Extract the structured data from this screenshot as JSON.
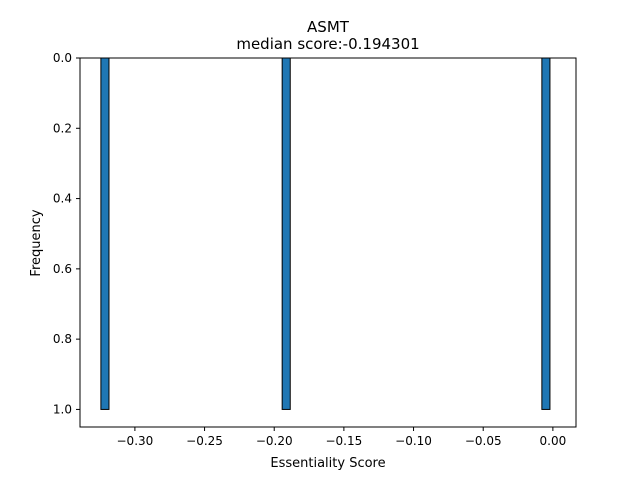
{
  "chart_data": {
    "type": "bar",
    "title": "ASMT",
    "subtitle": "median score:-0.194301",
    "xlabel": "Essentiality Score",
    "ylabel": "Frequency",
    "y_inverted": true,
    "xlim": [
      -0.3394,
      0.0166
    ],
    "ylim": [
      0,
      1.05
    ],
    "xticks": [
      -0.3,
      -0.25,
      -0.2,
      -0.15,
      -0.1,
      -0.05,
      0.0
    ],
    "xtick_labels": [
      "−0.30",
      "−0.25",
      "−0.20",
      "−0.15",
      "−0.10",
      "−0.05",
      "0.00"
    ],
    "yticks": [
      0.0,
      0.2,
      0.4,
      0.6,
      0.8,
      1.0
    ],
    "ytick_labels": [
      "0.0",
      "0.2",
      "0.4",
      "0.6",
      "0.8",
      "1.0"
    ],
    "bin_width": 0.0058,
    "bars": [
      {
        "x": -0.3215,
        "value": 1
      },
      {
        "x": -0.1914,
        "value": 1
      },
      {
        "x": -0.005,
        "value": 1
      }
    ],
    "bar_color": "#1f77b4",
    "edge_color": "#000000",
    "grid": false
  }
}
